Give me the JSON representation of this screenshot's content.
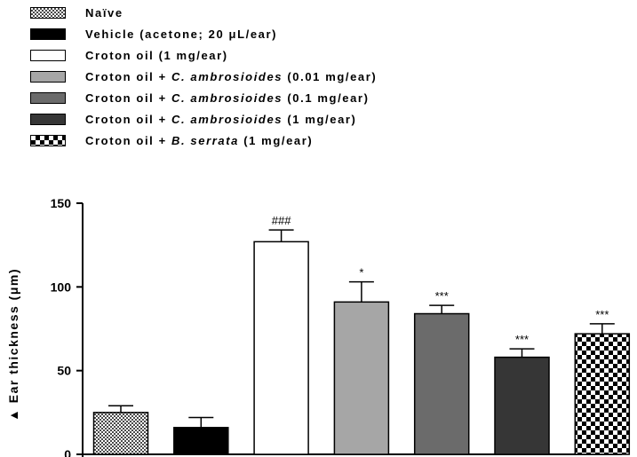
{
  "legend": [
    {
      "parts": [
        {
          "t": "Naïve"
        }
      ],
      "fill": "pat-naive"
    },
    {
      "parts": [
        {
          "t": "Vehicle (acetone; 20 "
        },
        {
          "t": "μ"
        },
        {
          "t": "L/ear)"
        }
      ],
      "fill": "#000000"
    },
    {
      "parts": [
        {
          "t": "Croton oil (1 mg/ear)"
        }
      ],
      "fill": "#ffffff"
    },
    {
      "parts": [
        {
          "t": "Croton oil + "
        },
        {
          "t": "C. ambrosioides",
          "i": true
        },
        {
          "t": " (0.01 mg/ear)"
        }
      ],
      "fill": "#a6a6a6"
    },
    {
      "parts": [
        {
          "t": "Croton oil + "
        },
        {
          "t": "C. ambrosioides",
          "i": true
        },
        {
          "t": " (0.1 mg/ear)"
        }
      ],
      "fill": "#6b6b6b"
    },
    {
      "parts": [
        {
          "t": "Croton oil + "
        },
        {
          "t": "C. ambrosioides",
          "i": true
        },
        {
          "t": " (1 mg/ear)"
        }
      ],
      "fill": "#363636"
    },
    {
      "parts": [
        {
          "t": "Croton oil + "
        },
        {
          "t": "B. serrata",
          "i": true
        },
        {
          "t": " (1 mg/ear)"
        }
      ],
      "fill": "pat-check"
    }
  ],
  "chart_data": {
    "type": "bar",
    "ylabel": "Ear thickness (μm)",
    "ylabel_prefix": "▲",
    "ylim": [
      0,
      150
    ],
    "yticks": [
      0,
      50,
      100,
      150
    ],
    "series": [
      {
        "values": [
          25,
          16,
          127,
          91,
          84,
          58,
          72
        ],
        "errors": [
          4,
          6,
          7,
          12,
          5,
          5,
          6
        ],
        "significance": [
          "",
          "",
          "###",
          "*",
          "***",
          "***",
          "***"
        ],
        "fills": [
          "pat-naive",
          "#000000",
          "#ffffff",
          "#a6a6a6",
          "#6b6b6b",
          "#363636",
          "pat-check"
        ]
      }
    ],
    "categories": [
      "Naïve",
      "Vehicle (acetone; 20 μL/ear)",
      "Croton oil (1 mg/ear)",
      "Croton oil + C. ambrosioides (0.01 mg/ear)",
      "Croton oil + C. ambrosioides (0.1 mg/ear)",
      "Croton oil + C. ambrosioides (1 mg/ear)",
      "Croton oil + B. serrata (1 mg/ear)"
    ]
  }
}
